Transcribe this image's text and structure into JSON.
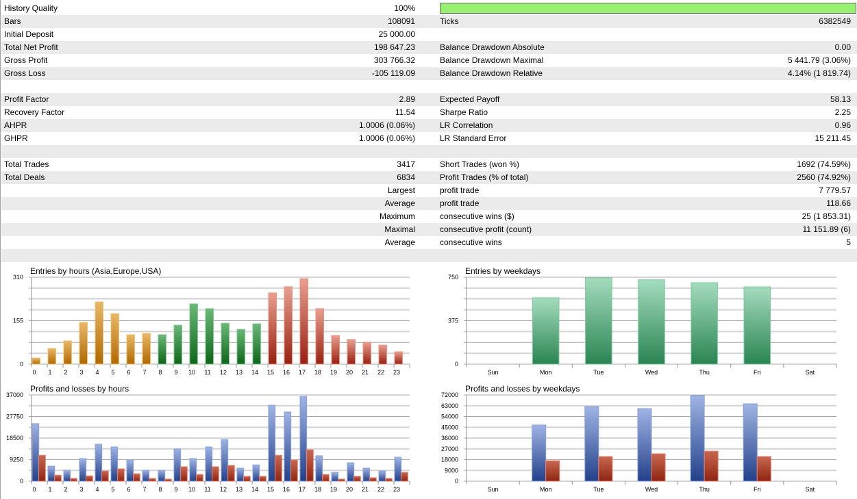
{
  "stats": [
    {
      "l1": "History Quality",
      "v1": "100%",
      "l2": "",
      "v2": "",
      "quality_bar": 100
    },
    {
      "l1": "Bars",
      "v1": "108091",
      "l2": "Ticks",
      "v2": "6382549"
    },
    {
      "l1": "Initial Deposit",
      "v1": "25 000.00",
      "l2": "",
      "v2": ""
    },
    {
      "l1": "Total Net Profit",
      "v1": "198 647.23",
      "l2": "Balance Drawdown Absolute",
      "v2": "0.00"
    },
    {
      "l1": "Gross Profit",
      "v1": "303 766.32",
      "l2": "Balance Drawdown Maximal",
      "v2": "5 441.79 (3.06%)"
    },
    {
      "l1": "Gross Loss",
      "v1": "-105 119.09",
      "l2": "Balance Drawdown Relative",
      "v2": "4.14% (1 819.74)"
    },
    {
      "l1": "",
      "v1": "",
      "l2": "",
      "v2": ""
    },
    {
      "l1": "Profit Factor",
      "v1": "2.89",
      "l2": "Expected Payoff",
      "v2": "58.13"
    },
    {
      "l1": "Recovery Factor",
      "v1": "11.54",
      "l2": "Sharpe Ratio",
      "v2": "2.25"
    },
    {
      "l1": "AHPR",
      "v1": "1.0006 (0.06%)",
      "l2": "LR Correlation",
      "v2": "0.96"
    },
    {
      "l1": "GHPR",
      "v1": "1.0006 (0.06%)",
      "l2": "LR Standard Error",
      "v2": "15 211.45"
    },
    {
      "l1": "",
      "v1": "",
      "l2": "",
      "v2": ""
    },
    {
      "l1": "Total Trades",
      "v1": "3417",
      "l2": "Short Trades (won %)",
      "v2": "1692 (74.59%)"
    },
    {
      "l1": "Total Deals",
      "v1": "6834",
      "l2": "Profit Trades (% of total)",
      "v2": "2560 (74.92%)"
    },
    {
      "l1": "",
      "v1": "Largest",
      "l2": "profit trade",
      "v2": "7 779.57"
    },
    {
      "l1": "",
      "v1": "Average",
      "l2": "profit trade",
      "v2": "118.66"
    },
    {
      "l1": "",
      "v1": "Maximum",
      "l2": "consecutive wins ($)",
      "v2": "25 (1 853.31)"
    },
    {
      "l1": "",
      "v1": "Maximal",
      "l2": "consecutive profit (count)",
      "v2": "11 151.89 (6)"
    },
    {
      "l1": "",
      "v1": "Average",
      "l2": "consecutive wins",
      "v2": "5"
    },
    {
      "l1": "",
      "v1": "",
      "l2": "",
      "v2": ""
    }
  ],
  "colors": {
    "quality": "#98f070",
    "asia": "#c98a1c",
    "europe": "#2a8a3a",
    "usa": "#c0503a",
    "profit": "#4a6ab8",
    "loss": "#b0402a",
    "weekday": "#4aa878"
  },
  "chart_data": [
    {
      "type": "bar",
      "title": "Entries by hours (Asia,Europe,USA)",
      "ylim": [
        0,
        310
      ],
      "yticks": [
        "310",
        "155",
        "0"
      ],
      "categories": [
        "0",
        "1",
        "2",
        "3",
        "4",
        "5",
        "6",
        "7",
        "8",
        "9",
        "10",
        "11",
        "12",
        "13",
        "14",
        "15",
        "16",
        "17",
        "18",
        "19",
        "20",
        "21",
        "22",
        "23"
      ],
      "series": [
        {
          "name": "Entries",
          "values": [
            22,
            56,
            83,
            149,
            222,
            180,
            105,
            110,
            105,
            139,
            215,
            198,
            146,
            124,
            144,
            254,
            276,
            305,
            198,
            102,
            88,
            78,
            68,
            44
          ]
        }
      ],
      "sessions": [
        "asia",
        "asia",
        "asia",
        "asia",
        "asia",
        "asia",
        "asia",
        "asia",
        "europe",
        "europe",
        "europe",
        "europe",
        "europe",
        "europe",
        "europe",
        "usa",
        "usa",
        "usa",
        "usa",
        "usa",
        "usa",
        "usa",
        "usa",
        "usa"
      ]
    },
    {
      "type": "bar",
      "title": "Entries by weekdays",
      "ylim": [
        0,
        750
      ],
      "yticks": [
        "750",
        "375",
        "0"
      ],
      "categories": [
        "Sun",
        "Mon",
        "Tue",
        "Wed",
        "Thu",
        "Fri",
        "Sat"
      ],
      "series": [
        {
          "name": "Entries",
          "values": [
            0,
            573,
            745,
            728,
            703,
            667,
            0
          ]
        }
      ]
    },
    {
      "type": "bar",
      "title": "Profits and losses by hours",
      "ylim": [
        0,
        37000
      ],
      "yticks": [
        "37000",
        "27750",
        "18500",
        "9250",
        "0"
      ],
      "categories": [
        "0",
        "1",
        "2",
        "3",
        "4",
        "5",
        "6",
        "7",
        "8",
        "9",
        "10",
        "11",
        "12",
        "13",
        "14",
        "15",
        "16",
        "17",
        "18",
        "19",
        "20",
        "21",
        "22",
        "23"
      ],
      "series": [
        {
          "name": "Profits",
          "values": [
            24700,
            6460,
            4700,
            9700,
            15900,
            14700,
            9100,
            4700,
            4700,
            13800,
            9700,
            14700,
            17900,
            5600,
            7000,
            32600,
            29700,
            36400,
            10900,
            3800,
            7900,
            5600,
            4400,
            10300
          ]
        },
        {
          "name": "Losses",
          "values": [
            11100,
            2600,
            1200,
            2300,
            4400,
            5300,
            3200,
            1200,
            900,
            6200,
            2900,
            6200,
            6800,
            2100,
            2100,
            11100,
            9100,
            13500,
            2900,
            900,
            2100,
            1500,
            1200,
            3800
          ]
        }
      ]
    },
    {
      "type": "bar",
      "title": "Profits and losses by weekdays",
      "ylim": [
        0,
        72000
      ],
      "yticks": [
        "72000",
        "63000",
        "54000",
        "45000",
        "36000",
        "27000",
        "18000",
        "9000",
        "0"
      ],
      "categories": [
        "Sun",
        "Mon",
        "Tue",
        "Wed",
        "Thu",
        "Fri",
        "Sat"
      ],
      "series": [
        {
          "name": "Profits",
          "values": [
            0,
            46900,
            62300,
            60600,
            71500,
            64600,
            0
          ]
        },
        {
          "name": "Losses",
          "values": [
            0,
            17100,
            20600,
            22900,
            25100,
            20600,
            0
          ]
        }
      ]
    }
  ]
}
